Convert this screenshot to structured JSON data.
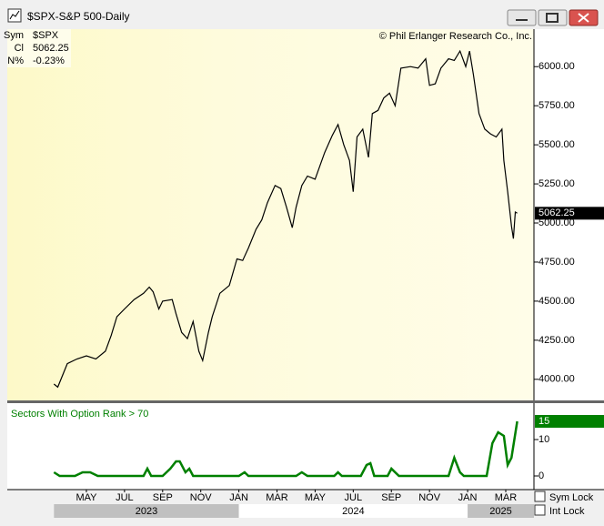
{
  "window": {
    "title": "$SPX-S&P 500-Daily",
    "copyright": "© Phil Erlanger Research Co., Inc.",
    "legend": [
      {
        "key": "Sym",
        "value": "$SPX"
      },
      {
        "key": "Cl",
        "value": "5062.25"
      },
      {
        "key": "N%",
        "value": "-0.23%"
      }
    ],
    "checkboxes": [
      "Sym Lock",
      "Int Lock"
    ]
  },
  "chart_data": [
    {
      "type": "line",
      "series": [
        {
          "name": "$SPX",
          "color": "#000000",
          "x": [
            2.3,
            2.5,
            3.0,
            3.5,
            4.0,
            4.5,
            5.0,
            5.3,
            5.6,
            6.0,
            6.5,
            7.0,
            7.3,
            7.5,
            7.8,
            8.0,
            8.5,
            8.7,
            9.0,
            9.3,
            9.6,
            9.9,
            10.1,
            10.4,
            10.6,
            11.0,
            11.5,
            11.9,
            12.2,
            12.5,
            12.9,
            13.2,
            13.5,
            13.9,
            14.2,
            14.5,
            14.8,
            15.0,
            15.3,
            15.6,
            16.0,
            16.5,
            16.9,
            17.2,
            17.5,
            17.8,
            18.0,
            18.2,
            18.5,
            18.8,
            19.0,
            19.3,
            19.6,
            19.9,
            20.2,
            20.5,
            21.0,
            21.4,
            21.8,
            22.0,
            22.3,
            22.6,
            23.0,
            23.3,
            23.6,
            23.9,
            24.1,
            24.3,
            24.6,
            24.9,
            25.2,
            25.5,
            25.8,
            25.9,
            26.1,
            26.3,
            26.4,
            26.5,
            26.6
          ],
          "values": [
            3970,
            3950,
            4100,
            4130,
            4150,
            4130,
            4180,
            4280,
            4400,
            4450,
            4510,
            4550,
            4590,
            4560,
            4450,
            4500,
            4510,
            4420,
            4300,
            4260,
            4370,
            4180,
            4120,
            4300,
            4400,
            4550,
            4600,
            4770,
            4760,
            4840,
            4960,
            5020,
            5130,
            5240,
            5220,
            5100,
            4970,
            5100,
            5240,
            5300,
            5280,
            5450,
            5560,
            5630,
            5500,
            5400,
            5200,
            5550,
            5600,
            5420,
            5700,
            5720,
            5800,
            5830,
            5750,
            5990,
            6000,
            5990,
            6050,
            5880,
            5890,
            5990,
            6050,
            6040,
            6100,
            6000,
            6100,
            5950,
            5700,
            5600,
            5570,
            5550,
            5600,
            5400,
            5200,
            4980,
            4900,
            5070,
            5062.25
          ]
        }
      ],
      "xlim": [
        -0.15,
        27.48
      ],
      "ylim": [
        3865,
        6240
      ],
      "yticks": [
        {
          "value": 4000,
          "label": "4000.00"
        },
        {
          "value": 4250,
          "label": "4250.00"
        },
        {
          "value": 4500,
          "label": "4500.00"
        },
        {
          "value": 4750,
          "label": "4750.00"
        },
        {
          "value": 5000,
          "label": "5000.00"
        },
        {
          "value": 5250,
          "label": "5250.00"
        },
        {
          "value": 5500,
          "label": "5500.00"
        },
        {
          "value": 5750,
          "label": "5750.00"
        },
        {
          "value": 6000,
          "label": "6000.00"
        }
      ],
      "last_value": 5062.25
    },
    {
      "type": "line",
      "title": "Sectors With Option Rank > 70",
      "series": [
        {
          "name": "Sectors With Option Rank > 70",
          "color": "#008000",
          "x": [
            2.3,
            2.6,
            3.4,
            3.8,
            4.2,
            4.6,
            7.0,
            7.2,
            7.4,
            8.0,
            8.4,
            8.7,
            8.9,
            9.2,
            9.4,
            9.6,
            12.0,
            12.3,
            12.5,
            15.0,
            15.3,
            15.6,
            17.0,
            17.2,
            17.4,
            18.4,
            18.7,
            18.9,
            19.1,
            19.8,
            20.0,
            20.2,
            20.4,
            23.0,
            23.3,
            23.6,
            23.8,
            25.0,
            25.3,
            25.6,
            25.9,
            26.1,
            26.3,
            26.6
          ],
          "values": [
            1,
            0,
            0,
            1,
            1,
            0,
            0,
            2,
            0,
            0,
            2,
            4,
            4,
            1,
            2,
            0,
            0,
            1,
            0,
            0,
            1,
            0,
            0,
            1,
            0,
            0,
            3,
            3.5,
            0,
            0,
            2,
            1,
            0,
            0,
            5,
            1,
            0,
            0,
            9,
            12,
            11,
            3,
            5,
            15
          ]
        }
      ],
      "xlim": [
        -0.15,
        27.48
      ],
      "ylim": [
        -3.75,
        20
      ],
      "yticks": [
        0,
        10
      ],
      "last_value": 15,
      "xticks": [
        {
          "value": 4,
          "label": "MAY"
        },
        {
          "value": 6,
          "label": "JUL"
        },
        {
          "value": 8,
          "label": "SEP"
        },
        {
          "value": 10,
          "label": "NOV"
        },
        {
          "value": 12,
          "label": "JAN"
        },
        {
          "value": 14,
          "label": "MAR"
        },
        {
          "value": 16,
          "label": "MAY"
        },
        {
          "value": 18,
          "label": "JUL"
        },
        {
          "value": 20,
          "label": "SEP"
        },
        {
          "value": 22,
          "label": "NOV"
        },
        {
          "value": 24,
          "label": "JAN"
        },
        {
          "value": 26,
          "label": "MAR"
        }
      ],
      "years": [
        {
          "label": "2023",
          "start": 2.3,
          "end": 12
        },
        {
          "label": "2024",
          "start": 12,
          "end": 24
        },
        {
          "label": "2025",
          "start": 24,
          "end": 27.48
        }
      ]
    }
  ]
}
